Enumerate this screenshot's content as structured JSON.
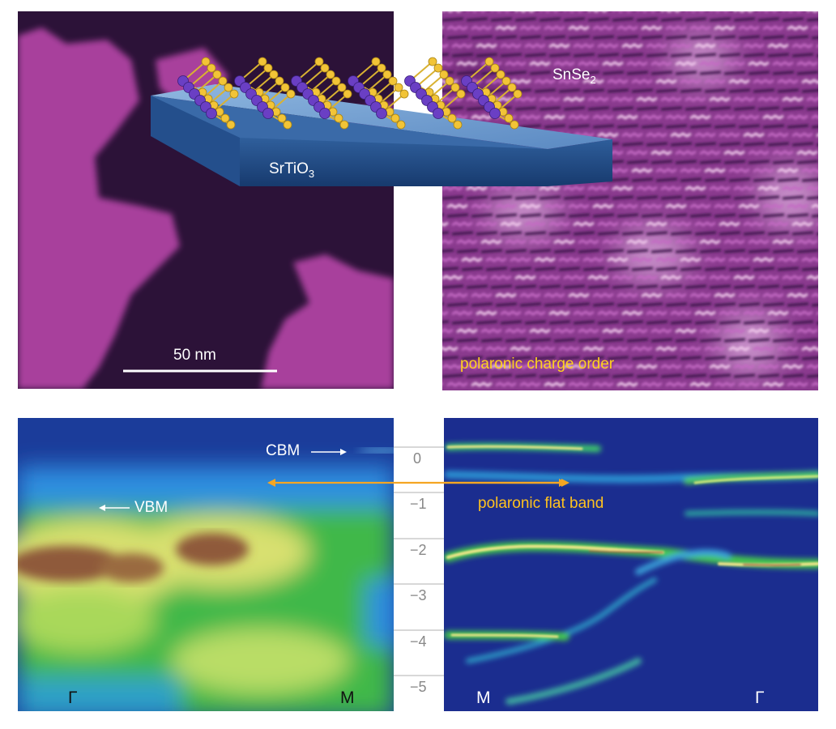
{
  "stm_topography": {
    "scale_bar_label": "50 nm"
  },
  "schematic": {
    "substrate_label_main": "SrTiO",
    "substrate_label_sub": "3",
    "film_label_main": "SnSe",
    "film_label_sub": "2"
  },
  "stm_atomic": {
    "caption": "polaronic charge order",
    "caption_color": "#ffd21e"
  },
  "arpes_left": {
    "cbm_label": "CBM",
    "vbm_label": "VBM",
    "k_left": "Γ",
    "k_right": "M"
  },
  "energy_axis": {
    "ticks": [
      "0",
      "−1",
      "−2",
      "−3",
      "−4",
      "−5"
    ]
  },
  "arpes_right": {
    "flat_band_label": "polaronic flat band",
    "flat_band_color": "#ffc21e",
    "k_left": "M",
    "k_right": "Γ"
  },
  "colors": {
    "stm_purple": "#a23fa6",
    "stm_dark": "#2a0f35",
    "arpes_background": "#1b2d8f",
    "arrow_orange": "#f5a623"
  }
}
